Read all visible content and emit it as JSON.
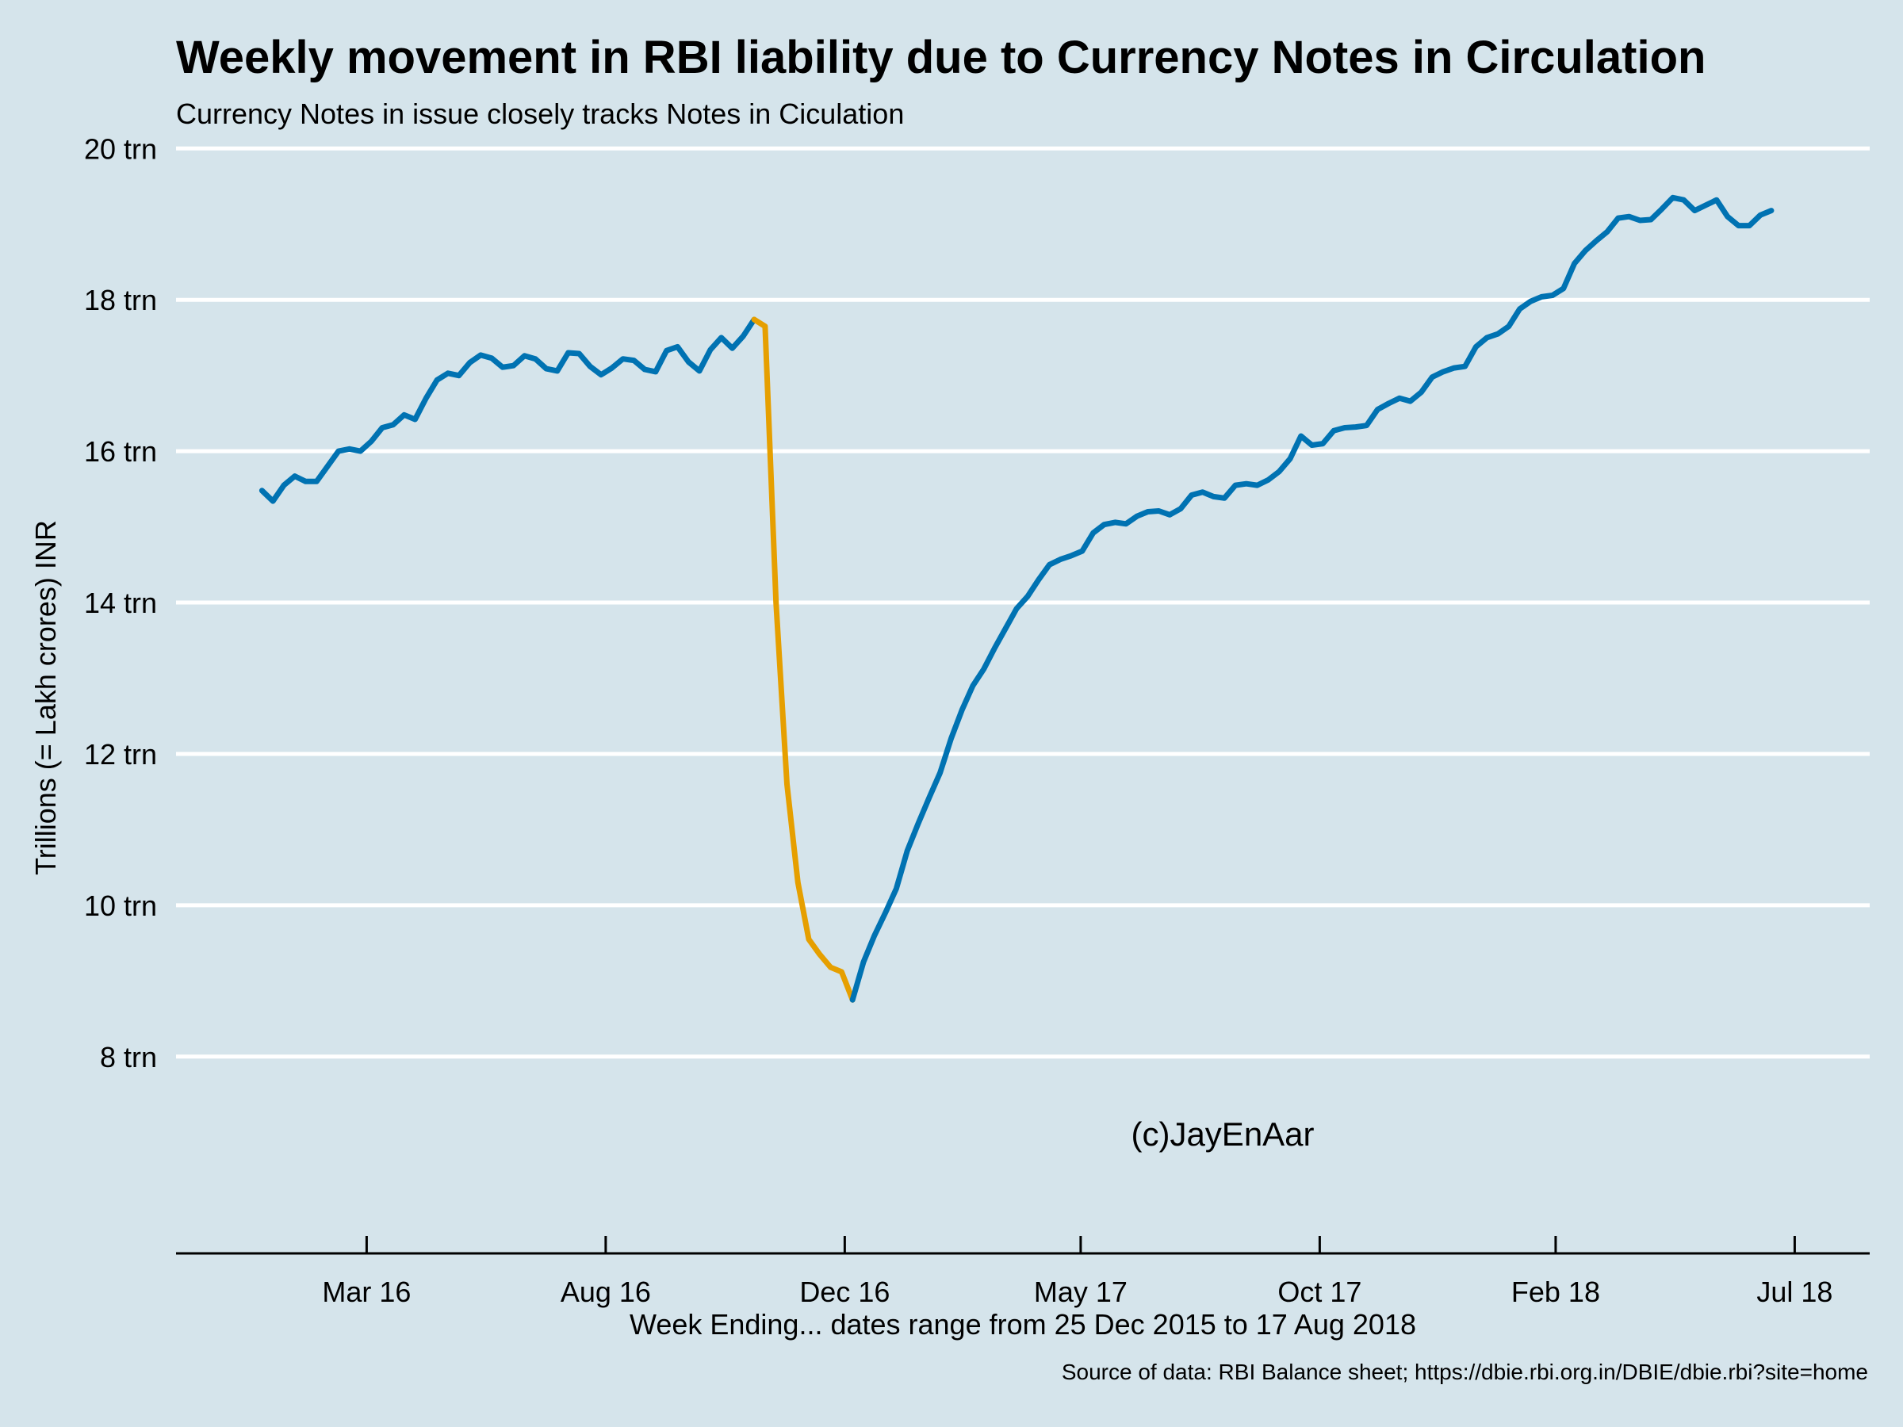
{
  "chart_data": {
    "type": "line",
    "title": "Weekly movement in RBI liability due to Currency Notes in Circulation",
    "subtitle": "Currency Notes in issue closely tracks Notes in Ciculation",
    "xlabel": "Week Ending... dates range from 25 Dec 2015 to 17 Aug 2018",
    "ylabel": "Trillions (= Lakh crores) INR",
    "caption": "Source of data: RBI Balance sheet; https://dbie.rbi.org.in/DBIE/dbie.rbi?site=home",
    "annotation": "(c)JayEnAar",
    "ylim": [
      5.4,
      20.6
    ],
    "xlim": [
      "2015-10-31",
      "2018-10-19"
    ],
    "y_ticks": [
      8,
      10,
      12,
      14,
      16,
      18,
      20
    ],
    "y_tick_labels": [
      "8 trn",
      "10 trn",
      "12 trn",
      "14 trn",
      "16 trn",
      "18 trn",
      "20 trn"
    ],
    "x_ticks": [
      "2016-03-01",
      "2016-08-01",
      "2017-01-01",
      "2017-06-01",
      "2017-11-01",
      "2018-04-01",
      "2018-09-01"
    ],
    "x_tick_labels": [
      "Mar 16",
      "Aug 16",
      "Dec 16",
      "May 17",
      "Oct 17",
      "Feb 18",
      "Jul 18"
    ],
    "grid": "horizontal",
    "legend": "none",
    "colors": {
      "normal": "#0072b2",
      "demonetisation": "#e69f00",
      "background": "#d5e4eb",
      "grid": "#ffffff"
    },
    "series": [
      {
        "color": "#0072b2",
        "x": [
          "2015-12-25",
          "2016-01-01",
          "2016-01-08",
          "2016-01-15",
          "2016-01-22",
          "2016-01-29",
          "2016-02-05",
          "2016-02-12",
          "2016-02-19",
          "2016-02-26",
          "2016-03-04",
          "2016-03-11",
          "2016-03-18",
          "2016-03-25",
          "2016-04-01",
          "2016-04-08",
          "2016-04-15",
          "2016-04-22",
          "2016-04-29",
          "2016-05-06",
          "2016-05-13",
          "2016-05-20",
          "2016-05-27",
          "2016-06-03",
          "2016-06-10",
          "2016-06-17",
          "2016-06-24",
          "2016-07-01",
          "2016-07-08",
          "2016-07-15",
          "2016-07-22",
          "2016-07-29",
          "2016-08-05",
          "2016-08-12",
          "2016-08-19",
          "2016-08-26",
          "2016-09-02",
          "2016-09-09",
          "2016-09-16",
          "2016-09-23",
          "2016-09-30",
          "2016-10-07",
          "2016-10-14",
          "2016-10-21",
          "2016-10-28",
          "2016-11-04"
        ],
        "y": [
          15.48,
          15.34,
          15.55,
          15.67,
          15.6,
          15.6,
          15.8,
          16.0,
          16.03,
          16.0,
          16.13,
          16.31,
          16.35,
          16.48,
          16.42,
          16.7,
          16.94,
          17.03,
          17.0,
          17.17,
          17.27,
          17.23,
          17.11,
          17.13,
          17.26,
          17.22,
          17.09,
          17.06,
          17.3,
          17.29,
          17.12,
          17.01,
          17.1,
          17.22,
          17.2,
          17.08,
          17.05,
          17.33,
          17.38,
          17.18,
          17.06,
          17.34,
          17.5,
          17.36,
          17.52,
          17.74
        ]
      },
      {
        "color": "#e69f00",
        "x": [
          "2016-11-04",
          "2016-11-11",
          "2016-11-18",
          "2016-11-25",
          "2016-12-02",
          "2016-12-09",
          "2016-12-16",
          "2016-12-23",
          "2016-12-30",
          "2017-01-06"
        ],
        "y": [
          17.74,
          17.65,
          14.0,
          11.6,
          10.3,
          9.55,
          9.35,
          9.18,
          9.12,
          8.75
        ]
      },
      {
        "color": "#0072b2",
        "x": [
          "2017-01-06",
          "2017-01-13",
          "2017-01-20",
          "2017-01-27",
          "2017-02-03",
          "2017-02-10",
          "2017-02-17",
          "2017-02-24",
          "2017-03-03",
          "2017-03-10",
          "2017-03-17",
          "2017-03-24",
          "2017-03-31",
          "2017-04-07",
          "2017-04-14",
          "2017-04-21",
          "2017-04-28",
          "2017-05-05",
          "2017-05-12",
          "2017-05-19",
          "2017-05-26",
          "2017-06-02",
          "2017-06-09",
          "2017-06-16",
          "2017-06-23",
          "2017-06-30",
          "2017-07-07",
          "2017-07-14",
          "2017-07-21",
          "2017-07-28",
          "2017-08-04",
          "2017-08-11",
          "2017-08-18",
          "2017-08-25",
          "2017-09-01",
          "2017-09-08",
          "2017-09-15",
          "2017-09-22",
          "2017-09-29",
          "2017-10-06",
          "2017-10-13",
          "2017-10-20",
          "2017-10-27",
          "2017-11-03",
          "2017-11-10",
          "2017-11-17",
          "2017-11-24",
          "2017-12-01",
          "2017-12-08",
          "2017-12-15",
          "2017-12-22",
          "2017-12-29",
          "2018-01-05",
          "2018-01-12",
          "2018-01-19",
          "2018-01-26",
          "2018-02-02",
          "2018-02-09",
          "2018-02-16",
          "2018-02-23",
          "2018-03-02",
          "2018-03-09",
          "2018-03-16",
          "2018-03-23",
          "2018-03-30",
          "2018-04-06",
          "2018-04-13",
          "2018-04-20",
          "2018-04-27",
          "2018-05-04",
          "2018-05-11",
          "2018-05-18",
          "2018-05-25",
          "2018-06-01",
          "2018-06-08",
          "2018-06-15",
          "2018-06-22",
          "2018-06-29",
          "2018-07-06",
          "2018-07-13",
          "2018-07-20",
          "2018-07-27",
          "2018-08-03",
          "2018-08-10",
          "2018-08-17"
        ],
        "y": [
          8.75,
          9.25,
          9.6,
          9.9,
          10.22,
          10.72,
          11.08,
          11.42,
          11.75,
          12.2,
          12.58,
          12.9,
          13.12,
          13.4,
          13.66,
          13.92,
          14.08,
          14.3,
          14.5,
          14.57,
          14.62,
          14.68,
          14.92,
          15.03,
          15.06,
          15.04,
          15.14,
          15.2,
          15.21,
          15.16,
          15.24,
          15.42,
          15.46,
          15.4,
          15.38,
          15.55,
          15.57,
          15.55,
          15.62,
          15.73,
          15.9,
          16.2,
          16.08,
          16.1,
          16.27,
          16.31,
          16.32,
          16.34,
          16.55,
          16.63,
          16.7,
          16.66,
          16.78,
          16.98,
          17.05,
          17.1,
          17.12,
          17.38,
          17.5,
          17.55,
          17.65,
          17.88,
          17.98,
          18.04,
          18.06,
          18.15,
          18.48,
          18.65,
          18.78,
          18.9,
          19.08,
          19.1,
          19.05,
          19.06,
          19.2,
          19.35,
          19.32,
          19.18,
          19.25,
          19.32,
          19.1,
          18.98,
          18.98,
          19.12,
          19.18
        ]
      }
    ]
  }
}
